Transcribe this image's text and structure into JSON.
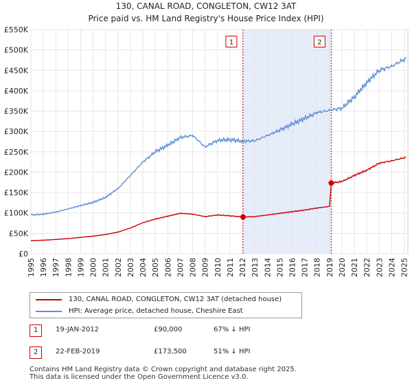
{
  "chart_data": {
    "type": "line",
    "title": "130, CANAL ROAD, CONGLETON, CW12 3AT",
    "subtitle": "Price paid vs. HM Land Registry's House Price Index (HPI)",
    "xlim": [
      1995,
      2025.3
    ],
    "ylim": [
      0,
      550000
    ],
    "x_ticks": [
      "1995",
      "1996",
      "1997",
      "1998",
      "1999",
      "2000",
      "2001",
      "2002",
      "2003",
      "2004",
      "2005",
      "2006",
      "2007",
      "2008",
      "2009",
      "2010",
      "2011",
      "2012",
      "2013",
      "2014",
      "2015",
      "2016",
      "2017",
      "2018",
      "2019",
      "2020",
      "2021",
      "2022",
      "2023",
      "2024",
      "2025"
    ],
    "y_ticks": [
      {
        "value": 0,
        "label": "£0"
      },
      {
        "value": 50000,
        "label": "£50K"
      },
      {
        "value": 100000,
        "label": "£100K"
      },
      {
        "value": 150000,
        "label": "£150K"
      },
      {
        "value": 200000,
        "label": "£200K"
      },
      {
        "value": 250000,
        "label": "£250K"
      },
      {
        "value": 300000,
        "label": "£300K"
      },
      {
        "value": 350000,
        "label": "£350K"
      },
      {
        "value": 400000,
        "label": "£400K"
      },
      {
        "value": 450000,
        "label": "£450K"
      },
      {
        "value": 500000,
        "label": "£500K"
      },
      {
        "value": 550000,
        "label": "£550K"
      }
    ],
    "shaded_region": {
      "from": 2012.05,
      "to": 2019.14,
      "color": "#dde4f7"
    },
    "series": [
      {
        "name": "130, CANAL ROAD, CONGLETON, CW12 3AT (detached house)",
        "color": "#cc0000",
        "x": [
          1995,
          1996,
          1997,
          1998,
          1999,
          2000,
          2001,
          2002,
          2003,
          2004,
          2005,
          2006,
          2007,
          2008,
          2009,
          2010,
          2011,
          2012.05,
          2013,
          2014,
          2015,
          2016,
          2017,
          2018,
          2019.0,
          2019.14,
          2020,
          2021,
          2022,
          2023,
          2024,
          2025.1
        ],
        "y": [
          32000,
          33000,
          35000,
          37000,
          40000,
          43000,
          47000,
          53000,
          63000,
          76000,
          85000,
          92000,
          99000,
          97000,
          91000,
          95000,
          93000,
          90000,
          91000,
          95000,
          99000,
          103000,
          107000,
          112000,
          116000,
          173500,
          177000,
          192000,
          205000,
          222000,
          228000,
          236000
        ]
      },
      {
        "name": "HPI: Average price, detached house, Cheshire East",
        "color": "#5b8fd4",
        "x": [
          1995,
          1996,
          1997,
          1998,
          1999,
          2000,
          2001,
          2002,
          2003,
          2004,
          2005,
          2006,
          2007,
          2008,
          2009,
          2010,
          2011,
          2012,
          2013,
          2014,
          2015,
          2016,
          2017,
          2018,
          2019,
          2020,
          2021,
          2022,
          2023,
          2024,
          2025.1
        ],
        "y": [
          95000,
          97000,
          102000,
          110000,
          118000,
          126000,
          138000,
          160000,
          192000,
          225000,
          250000,
          266000,
          285000,
          290000,
          262000,
          278000,
          280000,
          276000,
          277000,
          290000,
          303000,
          318000,
          332000,
          346000,
          352000,
          357000,
          385000,
          420000,
          450000,
          460000,
          478000
        ]
      }
    ],
    "markers": [
      {
        "label": "1",
        "x": 2012.05,
        "y": 90000,
        "box_y": 507000
      },
      {
        "label": "2",
        "x": 2019.14,
        "y": 173500,
        "box_y": 507000
      }
    ]
  },
  "legend": [
    {
      "label": "130, CANAL ROAD, CONGLETON, CW12 3AT (detached house)",
      "color": "#cc0000"
    },
    {
      "label": "HPI: Average price, detached house, Cheshire East",
      "color": "#5b8fd4"
    }
  ],
  "sales": [
    {
      "num": "1",
      "date": "19-JAN-2012",
      "price": "£90,000",
      "hpi": "67% ↓ HPI"
    },
    {
      "num": "2",
      "date": "22-FEB-2019",
      "price": "£173,500",
      "hpi": "51% ↓ HPI"
    }
  ],
  "footer": {
    "line1": "Contains HM Land Registry data © Crown copyright and database right 2025.",
    "line2": "This data is licensed under the Open Government Licence v3.0."
  }
}
